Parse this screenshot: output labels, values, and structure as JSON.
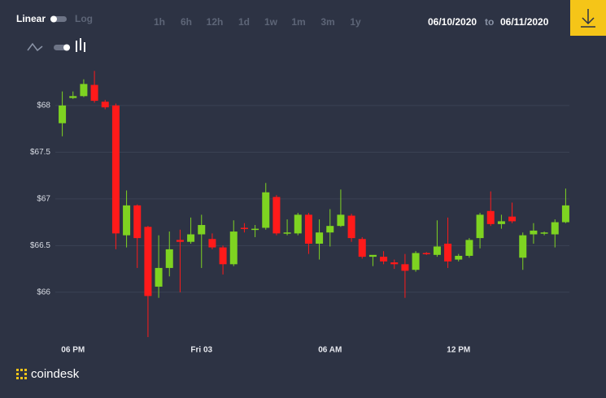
{
  "controls": {
    "scale_linear": "Linear",
    "scale_log": "Log",
    "ranges": [
      "1h",
      "6h",
      "12h",
      "1d",
      "1w",
      "1m",
      "3m",
      "1y"
    ],
    "active_range": "1d",
    "date_from": "06/10/2020",
    "date_sep": "to",
    "date_to": "06/11/2020"
  },
  "brand": "coindesk",
  "chart_data": {
    "type": "candlestick",
    "categories": [
      null,
      "06 PM",
      null,
      null,
      null,
      null,
      null,
      null,
      null,
      null,
      null,
      null,
      null,
      "Fri 03",
      null,
      null,
      null,
      null,
      null,
      null,
      null,
      null,
      null,
      null,
      null,
      "06 AM",
      null,
      null,
      null,
      null,
      null,
      null,
      null,
      null,
      null,
      null,
      null,
      "12 PM",
      null,
      null,
      null,
      null,
      null,
      null,
      null,
      null,
      null,
      null
    ],
    "open": [
      67.81,
      68.08,
      68.1,
      68.22,
      68.04,
      68.0,
      66.61,
      66.93,
      66.7,
      66.06,
      66.26,
      66.56,
      66.54,
      66.62,
      66.57,
      66.48,
      66.3,
      66.69,
      66.67,
      66.69,
      67.02,
      66.63,
      66.63,
      66.83,
      66.52,
      66.64,
      66.71,
      66.82,
      66.57,
      66.38,
      66.38,
      66.32,
      66.3,
      66.24,
      66.42,
      66.4,
      66.52,
      66.35,
      66.39,
      66.58,
      66.87,
      66.73,
      66.81,
      66.37,
      66.62,
      66.63,
      66.62,
      66.75
    ],
    "high": [
      68.15,
      68.15,
      68.28,
      68.37,
      68.06,
      68.02,
      67.09,
      66.94,
      66.71,
      66.61,
      66.65,
      66.67,
      66.8,
      66.83,
      66.63,
      66.5,
      66.77,
      66.74,
      66.72,
      67.17,
      67.04,
      66.78,
      66.85,
      66.85,
      66.78,
      66.89,
      67.1,
      66.84,
      66.59,
      66.39,
      66.44,
      66.35,
      66.41,
      66.44,
      66.43,
      66.77,
      66.8,
      66.41,
      66.58,
      66.85,
      67.08,
      66.83,
      66.96,
      66.64,
      66.74,
      66.65,
      66.78,
      67.11
    ],
    "low": [
      67.67,
      68.07,
      68.09,
      68.03,
      67.96,
      66.46,
      66.48,
      66.26,
      65.52,
      65.94,
      66.17,
      66.0,
      66.52,
      66.26,
      66.46,
      66.19,
      66.28,
      66.64,
      66.59,
      66.67,
      66.61,
      66.61,
      66.61,
      66.41,
      66.35,
      66.49,
      66.7,
      66.54,
      66.36,
      66.28,
      66.3,
      66.25,
      65.94,
      66.22,
      66.4,
      66.38,
      66.26,
      66.33,
      66.37,
      66.47,
      66.71,
      66.68,
      66.74,
      66.24,
      66.52,
      66.61,
      66.48,
      66.74
    ],
    "close": [
      68.0,
      68.1,
      68.23,
      68.05,
      67.98,
      66.63,
      66.93,
      66.58,
      65.96,
      66.26,
      66.46,
      66.54,
      66.62,
      66.72,
      66.48,
      66.3,
      66.65,
      66.68,
      66.68,
      67.07,
      66.63,
      66.64,
      66.83,
      66.52,
      66.64,
      66.71,
      66.83,
      66.58,
      66.38,
      66.4,
      66.33,
      66.3,
      66.23,
      66.42,
      66.41,
      66.49,
      66.33,
      66.39,
      66.56,
      66.83,
      66.73,
      66.76,
      66.76,
      66.61,
      66.66,
      66.64,
      66.75,
      66.93
    ],
    "up_color": "#7ed321",
    "down_color": "#ff1a1a",
    "ylim": [
      65.52,
      68.39
    ],
    "yticks": [
      {
        "value": 66,
        "label": "$66"
      },
      {
        "value": 66.5,
        "label": "$66.5"
      },
      {
        "value": 67,
        "label": "$67"
      },
      {
        "value": 67.5,
        "label": "$67.5"
      },
      {
        "value": 68,
        "label": "$68"
      }
    ],
    "grid": true
  }
}
